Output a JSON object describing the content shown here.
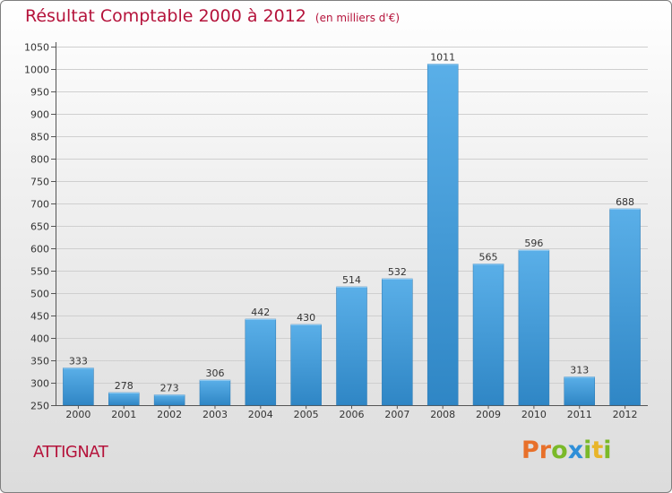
{
  "title": "Résultat Comptable 2000 à 2012",
  "unit": "(en milliers d'€)",
  "commune": "ATTIGNAT",
  "logo": {
    "letters": [
      "P",
      "r",
      "o",
      "x",
      "i",
      "t",
      "i"
    ]
  },
  "colors": {
    "title": "#b5133b",
    "bar_top": "#5aafe8",
    "bar_bottom": "#2f86c5",
    "grid": "#cfcfcf",
    "logo_letters": [
      "#e8702a",
      "#e8702a",
      "#7ab929",
      "#2f8fd8",
      "#7ab929",
      "#e8b52a",
      "#7ab929"
    ]
  },
  "chart_data": {
    "type": "bar",
    "title": "Résultat Comptable 2000 à 2012",
    "subtitle": "(en milliers d'€)",
    "xlabel": "",
    "ylabel": "",
    "categories": [
      "2000",
      "2001",
      "2002",
      "2003",
      "2004",
      "2005",
      "2006",
      "2007",
      "2008",
      "2009",
      "2010",
      "2011",
      "2012"
    ],
    "values": [
      333,
      278,
      273,
      306,
      442,
      430,
      514,
      532,
      1011,
      565,
      596,
      313,
      688
    ],
    "ylim": [
      250,
      1050
    ],
    "yticks": [
      250,
      300,
      350,
      400,
      450,
      500,
      550,
      600,
      650,
      700,
      750,
      800,
      850,
      900,
      950,
      1000,
      1050
    ],
    "grid": true
  }
}
